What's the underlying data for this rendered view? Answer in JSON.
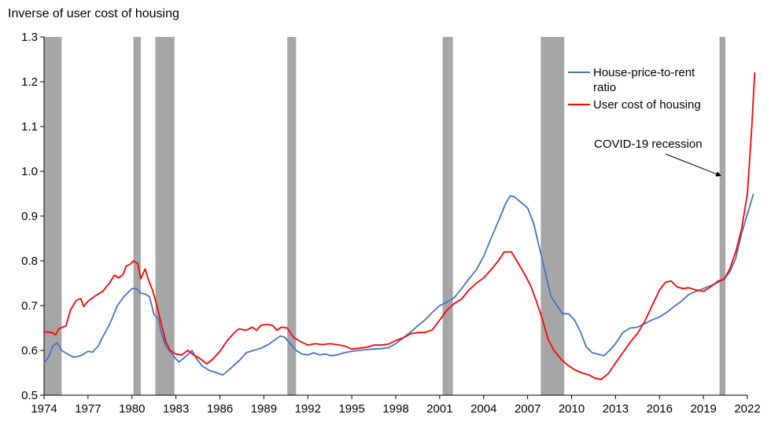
{
  "chart_data": {
    "type": "line",
    "title": "Inverse of user cost of housing",
    "xlabel": "",
    "ylabel": "",
    "xlim": [
      1974,
      2022
    ],
    "ylim": [
      0.5,
      1.3
    ],
    "x_ticks": [
      1974,
      1977,
      1980,
      1983,
      1986,
      1989,
      1992,
      1995,
      1998,
      2001,
      2004,
      2007,
      2010,
      2013,
      2016,
      2019,
      2022
    ],
    "x_tick_labels": [
      "1974",
      "1977",
      "1980",
      "1983",
      "1986",
      "1989",
      "1992",
      "1995",
      "1998",
      "2001",
      "2004",
      "2007",
      "2010",
      "2013",
      "2016",
      "2019",
      "2022"
    ],
    "y_ticks": [
      0.5,
      0.6,
      0.7,
      0.8,
      0.9,
      1.0,
      1.1,
      1.2,
      1.3
    ],
    "y_tick_labels": [
      "0.5",
      "0.6",
      "0.7",
      "0.8",
      "0.9",
      "1.0",
      "1.1",
      "1.2",
      "1.3"
    ],
    "grid": false,
    "legend_position": "top-right",
    "recessions": [
      {
        "start": 1974.0,
        "end": 1975.2
      },
      {
        "start": 1980.1,
        "end": 1980.6
      },
      {
        "start": 1981.6,
        "end": 1982.9
      },
      {
        "start": 1990.6,
        "end": 1991.2
      },
      {
        "start": 2001.2,
        "end": 2001.9
      },
      {
        "start": 2007.9,
        "end": 2009.5
      },
      {
        "start": 2020.1,
        "end": 2020.5
      }
    ],
    "annotation": {
      "text": "COVID-19  recession",
      "arrow_target": [
        2020.3,
        0.99
      ]
    },
    "series": [
      {
        "name": "House-price-to-rent ratio",
        "color": "#4472c4",
        "points": [
          [
            1974.0,
            0.572
          ],
          [
            1974.3,
            0.585
          ],
          [
            1974.6,
            0.61
          ],
          [
            1974.9,
            0.617
          ],
          [
            1975.2,
            0.6
          ],
          [
            1975.6,
            0.592
          ],
          [
            1976.0,
            0.585
          ],
          [
            1976.5,
            0.588
          ],
          [
            1977.0,
            0.598
          ],
          [
            1977.3,
            0.596
          ],
          [
            1977.7,
            0.61
          ],
          [
            1978.0,
            0.63
          ],
          [
            1978.5,
            0.66
          ],
          [
            1979.0,
            0.7
          ],
          [
            1979.5,
            0.722
          ],
          [
            1980.0,
            0.738
          ],
          [
            1980.3,
            0.738
          ],
          [
            1980.6,
            0.728
          ],
          [
            1980.9,
            0.726
          ],
          [
            1981.2,
            0.72
          ],
          [
            1981.5,
            0.68
          ],
          [
            1981.8,
            0.67
          ],
          [
            1982.0,
            0.64
          ],
          [
            1982.3,
            0.61
          ],
          [
            1982.6,
            0.598
          ],
          [
            1982.9,
            0.585
          ],
          [
            1983.2,
            0.574
          ],
          [
            1983.5,
            0.582
          ],
          [
            1983.8,
            0.59
          ],
          [
            1984.1,
            0.6
          ],
          [
            1984.4,
            0.582
          ],
          [
            1984.8,
            0.565
          ],
          [
            1985.3,
            0.555
          ],
          [
            1985.8,
            0.55
          ],
          [
            1986.2,
            0.545
          ],
          [
            1986.6,
            0.556
          ],
          [
            1987.0,
            0.568
          ],
          [
            1987.4,
            0.58
          ],
          [
            1987.8,
            0.595
          ],
          [
            1988.3,
            0.6
          ],
          [
            1988.8,
            0.605
          ],
          [
            1989.3,
            0.613
          ],
          [
            1989.8,
            0.625
          ],
          [
            1990.1,
            0.632
          ],
          [
            1990.4,
            0.63
          ],
          [
            1990.8,
            0.615
          ],
          [
            1991.2,
            0.6
          ],
          [
            1991.6,
            0.592
          ],
          [
            1992.0,
            0.59
          ],
          [
            1992.4,
            0.595
          ],
          [
            1992.8,
            0.59
          ],
          [
            1993.2,
            0.592
          ],
          [
            1993.6,
            0.588
          ],
          [
            1994.0,
            0.59
          ],
          [
            1994.5,
            0.595
          ],
          [
            1995.0,
            0.598
          ],
          [
            1995.5,
            0.6
          ],
          [
            1996.0,
            0.602
          ],
          [
            1996.5,
            0.603
          ],
          [
            1997.0,
            0.604
          ],
          [
            1997.5,
            0.606
          ],
          [
            1998.0,
            0.615
          ],
          [
            1998.5,
            0.628
          ],
          [
            1999.0,
            0.64
          ],
          [
            1999.5,
            0.655
          ],
          [
            2000.0,
            0.668
          ],
          [
            2000.5,
            0.685
          ],
          [
            2001.0,
            0.7
          ],
          [
            2001.5,
            0.708
          ],
          [
            2002.0,
            0.718
          ],
          [
            2002.5,
            0.738
          ],
          [
            2003.0,
            0.76
          ],
          [
            2003.5,
            0.78
          ],
          [
            2004.0,
            0.81
          ],
          [
            2004.5,
            0.85
          ],
          [
            2005.0,
            0.888
          ],
          [
            2005.5,
            0.928
          ],
          [
            2005.8,
            0.945
          ],
          [
            2006.1,
            0.943
          ],
          [
            2006.5,
            0.932
          ],
          [
            2007.0,
            0.918
          ],
          [
            2007.4,
            0.885
          ],
          [
            2007.8,
            0.83
          ],
          [
            2008.2,
            0.775
          ],
          [
            2008.6,
            0.72
          ],
          [
            2009.0,
            0.7
          ],
          [
            2009.4,
            0.682
          ],
          [
            2009.8,
            0.682
          ],
          [
            2010.2,
            0.668
          ],
          [
            2010.6,
            0.642
          ],
          [
            2011.0,
            0.608
          ],
          [
            2011.4,
            0.595
          ],
          [
            2011.8,
            0.592
          ],
          [
            2012.2,
            0.588
          ],
          [
            2012.6,
            0.6
          ],
          [
            2013.0,
            0.615
          ],
          [
            2013.5,
            0.64
          ],
          [
            2014.0,
            0.65
          ],
          [
            2014.5,
            0.652
          ],
          [
            2015.0,
            0.66
          ],
          [
            2015.5,
            0.668
          ],
          [
            2016.0,
            0.675
          ],
          [
            2016.5,
            0.685
          ],
          [
            2017.0,
            0.698
          ],
          [
            2017.5,
            0.71
          ],
          [
            2018.0,
            0.725
          ],
          [
            2018.5,
            0.732
          ],
          [
            2019.0,
            0.738
          ],
          [
            2019.5,
            0.745
          ],
          [
            2020.0,
            0.752
          ],
          [
            2020.4,
            0.76
          ],
          [
            2020.8,
            0.775
          ],
          [
            2021.2,
            0.805
          ],
          [
            2021.6,
            0.86
          ],
          [
            2022.0,
            0.905
          ],
          [
            2022.4,
            0.948
          ]
        ]
      },
      {
        "name": "User cost of housing",
        "color": "#ff0000",
        "points": [
          [
            1974.0,
            0.642
          ],
          [
            1974.5,
            0.64
          ],
          [
            1974.8,
            0.635
          ],
          [
            1975.0,
            0.648
          ],
          [
            1975.5,
            0.655
          ],
          [
            1975.8,
            0.69
          ],
          [
            1976.2,
            0.712
          ],
          [
            1976.5,
            0.716
          ],
          [
            1976.7,
            0.698
          ],
          [
            1977.0,
            0.71
          ],
          [
            1977.5,
            0.722
          ],
          [
            1978.0,
            0.732
          ],
          [
            1978.5,
            0.752
          ],
          [
            1978.8,
            0.768
          ],
          [
            1979.1,
            0.762
          ],
          [
            1979.4,
            0.77
          ],
          [
            1979.6,
            0.788
          ],
          [
            1979.9,
            0.793
          ],
          [
            1980.1,
            0.8
          ],
          [
            1980.4,
            0.794
          ],
          [
            1980.6,
            0.76
          ],
          [
            1980.9,
            0.782
          ],
          [
            1981.1,
            0.76
          ],
          [
            1981.4,
            0.735
          ],
          [
            1981.7,
            0.7
          ],
          [
            1982.0,
            0.66
          ],
          [
            1982.3,
            0.62
          ],
          [
            1982.6,
            0.6
          ],
          [
            1983.0,
            0.592
          ],
          [
            1983.4,
            0.59
          ],
          [
            1983.8,
            0.6
          ],
          [
            1984.2,
            0.59
          ],
          [
            1984.5,
            0.585
          ],
          [
            1984.8,
            0.578
          ],
          [
            1985.1,
            0.57
          ],
          [
            1985.5,
            0.58
          ],
          [
            1986.0,
            0.598
          ],
          [
            1986.5,
            0.622
          ],
          [
            1987.0,
            0.64
          ],
          [
            1987.3,
            0.648
          ],
          [
            1987.8,
            0.645
          ],
          [
            1988.2,
            0.652
          ],
          [
            1988.5,
            0.645
          ],
          [
            1988.8,
            0.656
          ],
          [
            1989.2,
            0.658
          ],
          [
            1989.6,
            0.656
          ],
          [
            1989.9,
            0.645
          ],
          [
            1990.2,
            0.652
          ],
          [
            1990.6,
            0.65
          ],
          [
            1991.0,
            0.63
          ],
          [
            1991.5,
            0.62
          ],
          [
            1992.0,
            0.612
          ],
          [
            1992.5,
            0.615
          ],
          [
            1993.0,
            0.613
          ],
          [
            1993.5,
            0.615
          ],
          [
            1994.0,
            0.613
          ],
          [
            1994.5,
            0.61
          ],
          [
            1995.0,
            0.603
          ],
          [
            1995.5,
            0.605
          ],
          [
            1996.0,
            0.607
          ],
          [
            1996.5,
            0.612
          ],
          [
            1997.0,
            0.612
          ],
          [
            1997.5,
            0.614
          ],
          [
            1998.0,
            0.622
          ],
          [
            1998.5,
            0.628
          ],
          [
            1999.0,
            0.637
          ],
          [
            1999.5,
            0.64
          ],
          [
            2000.0,
            0.64
          ],
          [
            2000.5,
            0.646
          ],
          [
            2001.0,
            0.668
          ],
          [
            2001.5,
            0.69
          ],
          [
            2002.0,
            0.705
          ],
          [
            2002.5,
            0.715
          ],
          [
            2003.0,
            0.735
          ],
          [
            2003.5,
            0.75
          ],
          [
            2004.0,
            0.762
          ],
          [
            2004.5,
            0.78
          ],
          [
            2005.0,
            0.8
          ],
          [
            2005.4,
            0.82
          ],
          [
            2005.9,
            0.82
          ],
          [
            2006.3,
            0.798
          ],
          [
            2006.8,
            0.77
          ],
          [
            2007.2,
            0.745
          ],
          [
            2007.6,
            0.71
          ],
          [
            2008.0,
            0.67
          ],
          [
            2008.4,
            0.625
          ],
          [
            2008.8,
            0.6
          ],
          [
            2009.3,
            0.58
          ],
          [
            2009.7,
            0.568
          ],
          [
            2010.2,
            0.557
          ],
          [
            2010.7,
            0.55
          ],
          [
            2011.2,
            0.545
          ],
          [
            2011.6,
            0.538
          ],
          [
            2012.0,
            0.535
          ],
          [
            2012.5,
            0.548
          ],
          [
            2013.0,
            0.572
          ],
          [
            2013.5,
            0.595
          ],
          [
            2014.0,
            0.618
          ],
          [
            2014.5,
            0.638
          ],
          [
            2015.0,
            0.665
          ],
          [
            2015.5,
            0.7
          ],
          [
            2016.0,
            0.735
          ],
          [
            2016.4,
            0.752
          ],
          [
            2016.8,
            0.755
          ],
          [
            2017.2,
            0.742
          ],
          [
            2017.6,
            0.738
          ],
          [
            2018.0,
            0.74
          ],
          [
            2018.5,
            0.735
          ],
          [
            2019.0,
            0.732
          ],
          [
            2019.5,
            0.742
          ],
          [
            2020.0,
            0.755
          ],
          [
            2020.4,
            0.758
          ],
          [
            2020.8,
            0.782
          ],
          [
            2021.2,
            0.82
          ],
          [
            2021.6,
            0.87
          ],
          [
            2022.0,
            0.95
          ],
          [
            2022.3,
            1.1
          ],
          [
            2022.5,
            1.22
          ]
        ]
      }
    ]
  }
}
